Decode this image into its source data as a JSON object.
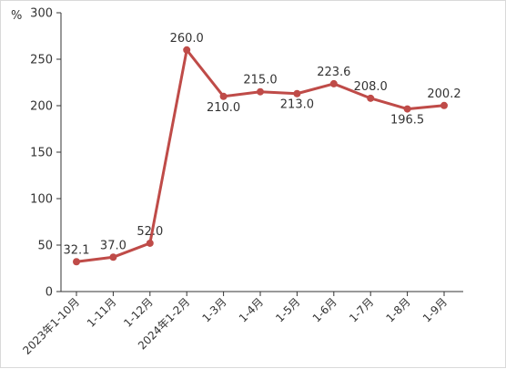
{
  "chart_data": {
    "type": "line",
    "ylabel": "%",
    "ylim": [
      0,
      300
    ],
    "yticks": [
      0,
      50,
      100,
      150,
      200,
      250,
      300
    ],
    "categories": [
      "2023年1-10月",
      "1-11月",
      "1-12月",
      "2024年1-2月",
      "1-3月",
      "1-4月",
      "1-5月",
      "1-6月",
      "1-7月",
      "1-8月",
      "1-9月"
    ],
    "series": [
      {
        "values": [
          32.1,
          37.0,
          52.0,
          260.0,
          210.0,
          215.0,
          213.0,
          223.6,
          208.0,
          196.5,
          200.2
        ],
        "data_labels": [
          "32.1",
          "37.0",
          "52.0",
          "260.0",
          "210.0",
          "215.0",
          "213.0",
          "223.6",
          "208.0",
          "196.5",
          "200.2"
        ],
        "color": "#bf4b48"
      }
    ],
    "grid": false,
    "legend": "none"
  }
}
